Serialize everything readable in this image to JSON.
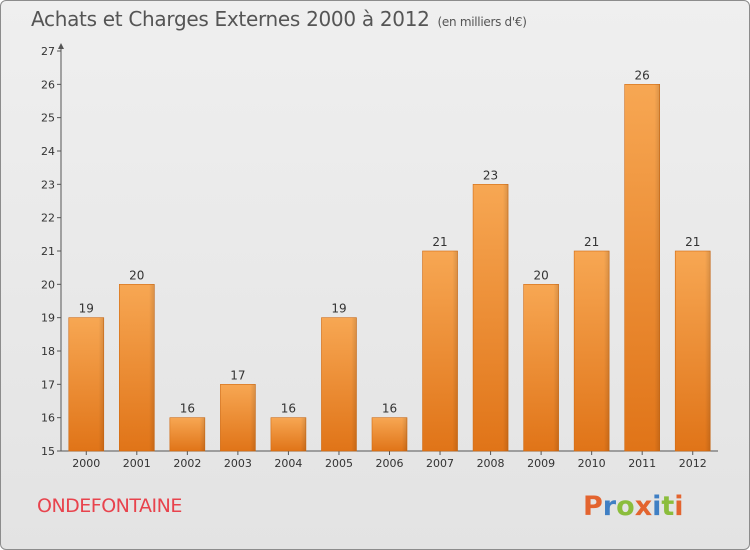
{
  "header": {
    "title": "Achats et Charges Externes 2000 à 2012",
    "unit": "(en milliers d'€)"
  },
  "footer": {
    "commune": "ONDEFONTAINE",
    "logo_text": "Proxiti",
    "logo_colors": [
      "#e3642f",
      "#3f7fc4",
      "#8bbd3c",
      "#e3642f",
      "#3f7fc4",
      "#8bbd3c",
      "#e3642f"
    ]
  },
  "colors": {
    "bar_top": "#f7a753",
    "bar_bottom": "#e07418",
    "bar_edge": "#d06a12"
  },
  "chart_data": {
    "type": "bar",
    "title": "Achats et Charges Externes 2000 à 2012",
    "subtitle": "(en milliers d'€)",
    "categories": [
      "2000",
      "2001",
      "2002",
      "2003",
      "2004",
      "2005",
      "2006",
      "2007",
      "2008",
      "2009",
      "2010",
      "2011",
      "2012"
    ],
    "values": [
      19,
      20,
      16,
      17,
      16,
      19,
      16,
      21,
      23,
      20,
      21,
      26,
      21
    ],
    "ylim": [
      15,
      27
    ],
    "yticks": [
      15,
      16,
      17,
      18,
      19,
      20,
      21,
      22,
      23,
      24,
      25,
      26,
      27
    ],
    "grid": false,
    "xlabel": "",
    "ylabel": ""
  }
}
